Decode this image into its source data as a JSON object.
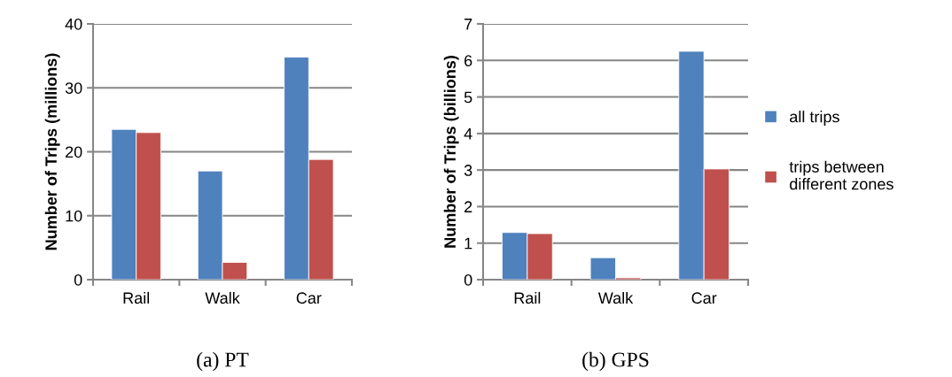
{
  "chart_data": [
    {
      "type": "bar",
      "title": "(a) PT",
      "ylabel": "Number of Trips (millions)",
      "categories": [
        "Rail",
        "Walk",
        "Car"
      ],
      "series": [
        {
          "color": "#4f81bd",
          "values": [
            23.5,
            17.0,
            34.8
          ]
        },
        {
          "color": "#c0504d",
          "values": [
            23.0,
            2.7,
            18.8
          ]
        }
      ],
      "ylim": [
        0,
        40
      ],
      "yticks": [
        0,
        10,
        20,
        30,
        40
      ],
      "grid": "y"
    },
    {
      "type": "bar",
      "title": "(b) GPS",
      "ylabel": "Number of Trips (billions)",
      "categories": [
        "Rail",
        "Walk",
        "Car"
      ],
      "series": [
        {
          "name": "all trips",
          "color": "#4f81bd",
          "values": [
            1.29,
            0.6,
            6.25
          ]
        },
        {
          "name": "trips between different zones",
          "color": "#c0504d",
          "values": [
            1.26,
            0.05,
            3.03
          ]
        }
      ],
      "ylim": [
        0,
        7
      ],
      "yticks": [
        0,
        1,
        2,
        3,
        4,
        5,
        6,
        7
      ],
      "grid": "y",
      "legend": "right"
    }
  ]
}
